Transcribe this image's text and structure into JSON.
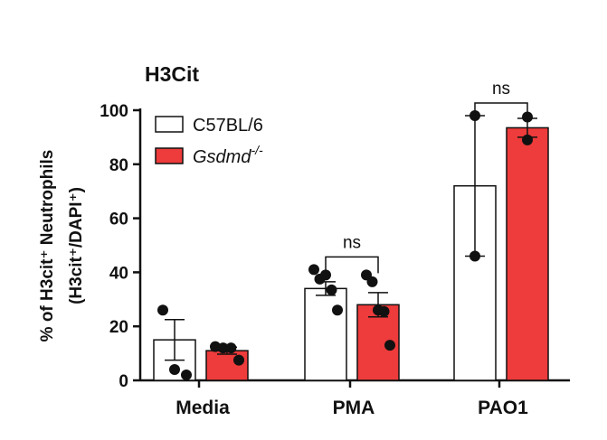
{
  "chart_data": {
    "type": "bar",
    "title": "H3Cit",
    "ylabel_line1": "% of H3cit⁺ Neutrophils",
    "ylabel_line2": "(H3cit⁺/DAPI⁺)",
    "ylim": [
      0,
      100
    ],
    "yticks": [
      "0",
      "20",
      "40",
      "60",
      "80",
      "100"
    ],
    "categories": [
      "Media",
      "PMA",
      "PAO1"
    ],
    "legend_position": "top-left",
    "series": [
      {
        "name": "C57BL/6",
        "fill": "#ffffff",
        "values": [
          15,
          34,
          72
        ],
        "errors": [
          7.5,
          2.5,
          26
        ],
        "points": [
          [
            26,
            4,
            2
          ],
          [
            41,
            37.5,
            39,
            33.5,
            26
          ],
          [
            98,
            46
          ]
        ]
      },
      {
        "name": "Gsdmd",
        "name_sup": "-/-",
        "fill": "#ee3b3b",
        "values": [
          11,
          28,
          93.5
        ],
        "errors": [
          1.3,
          4.5,
          3.5
        ],
        "points": [
          [
            12.5,
            12,
            12,
            7.5
          ],
          [
            39,
            36.5,
            26,
            25.5,
            13
          ],
          [
            97.5,
            89
          ]
        ]
      }
    ],
    "comparisons": [
      {
        "category": "PMA",
        "label": "ns"
      },
      {
        "category": "PAO1",
        "label": "ns"
      }
    ]
  }
}
